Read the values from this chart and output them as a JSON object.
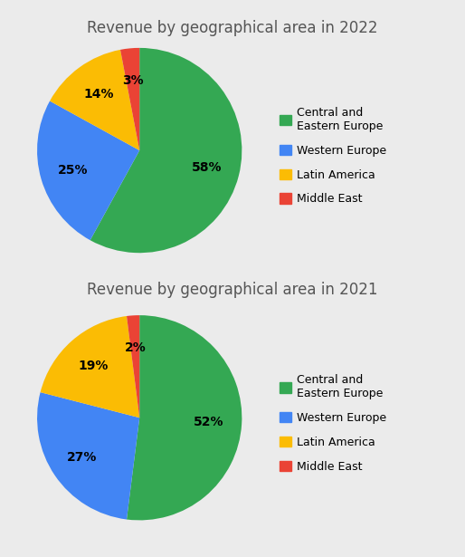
{
  "chart1": {
    "title": "Revenue by geographical area in 2022",
    "values": [
      58,
      25,
      14,
      3
    ],
    "pct_labels": [
      "58%",
      "25%",
      "14%",
      "3%"
    ],
    "colors": [
      "#34a853",
      "#4285f4",
      "#fbbc04",
      "#ea4335"
    ],
    "startangle": 90,
    "pct_distance": 0.68
  },
  "chart2": {
    "title": "Revenue by geographical area in 2021",
    "values": [
      52,
      27,
      19,
      2
    ],
    "pct_labels": [
      "52%",
      "27%",
      "19%",
      "2%"
    ],
    "colors": [
      "#34a853",
      "#4285f4",
      "#fbbc04",
      "#ea4335"
    ],
    "startangle": 90,
    "pct_distance": 0.68
  },
  "legend_labels": [
    "Central and\nEastern Europe",
    "Western Europe",
    "Latin America",
    "Middle East"
  ],
  "legend_colors": [
    "#34a853",
    "#4285f4",
    "#fbbc04",
    "#ea4335"
  ],
  "background_color": "#ebebeb",
  "title_fontsize": 12,
  "label_fontsize": 10,
  "legend_fontsize": 9
}
